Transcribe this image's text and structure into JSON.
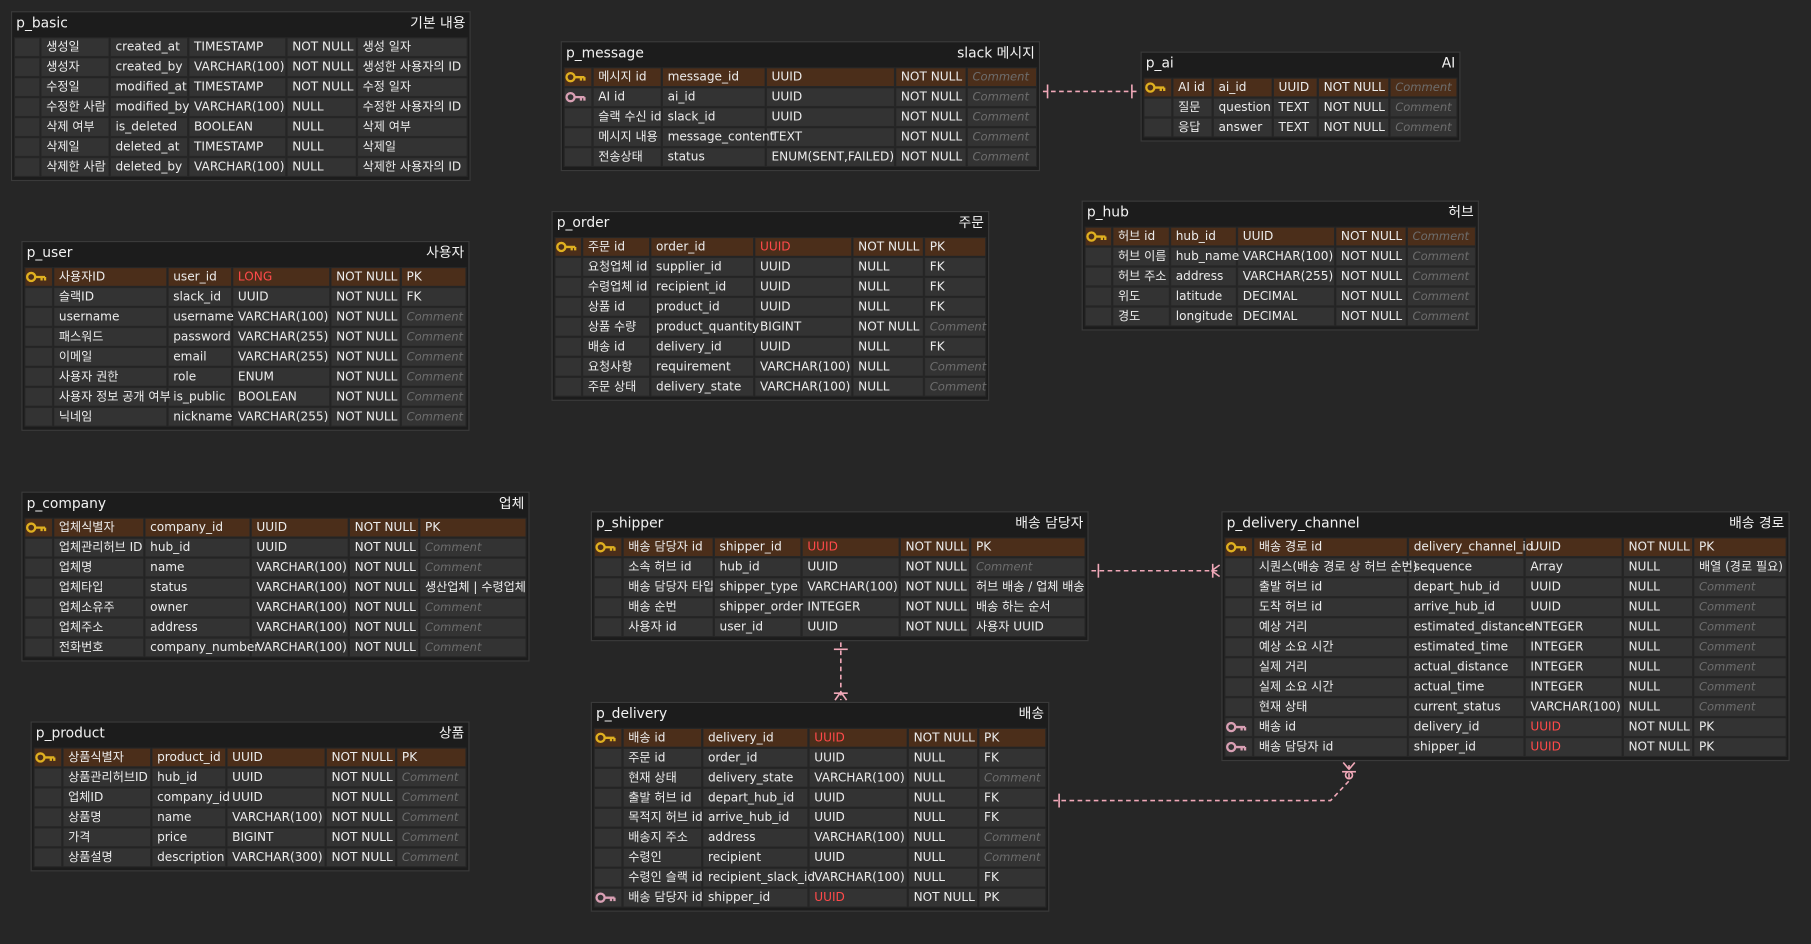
{
  "tables": [
    {
      "name": "p_basic",
      "label": "기본 내용",
      "rows": [
        [
          "생성일",
          "created_at",
          "TIMESTAMP",
          "NOT NULL",
          "생성 일자"
        ],
        [
          "생성자",
          "created_by",
          "VARCHAR(100)",
          "NOT NULL",
          "생성한 사용자의 ID"
        ],
        [
          "수정일",
          "modified_at",
          "TIMESTAMP",
          "NOT NULL",
          "수정 일자"
        ],
        [
          "수정한 사람",
          "modified_by",
          "VARCHAR(100)",
          "NULL",
          "수정한 사용자의 ID"
        ],
        [
          "삭제 여부",
          "is_deleted",
          "BOOLEAN",
          "NULL",
          "삭제 여부"
        ],
        [
          "삭제일",
          "deleted_at",
          "TIMESTAMP",
          "NULL",
          "삭제일"
        ],
        [
          "삭제한 사람",
          "deleted_by",
          "VARCHAR(100)",
          "NULL",
          "삭제한 사용자의 ID"
        ]
      ]
    },
    {
      "name": "p_message",
      "label": "slack 메시지",
      "rows": [
        [
          "메시지 id",
          "message_id",
          "UUID",
          "NOT NULL",
          "Comment"
        ],
        [
          "AI id",
          "ai_id",
          "UUID",
          "NOT NULL",
          "Comment"
        ],
        [
          "슬랙 수신 id",
          "slack_id",
          "UUID",
          "NOT NULL",
          "Comment"
        ],
        [
          "메시지 내용",
          "message_content",
          "TEXT",
          "NOT NULL",
          "Comment"
        ],
        [
          "전송상태",
          "status",
          "ENUM(SENT,FAILED)",
          "NOT NULL",
          "Comment"
        ]
      ]
    },
    {
      "name": "p_ai",
      "label": "AI",
      "rows": [
        [
          "AI id",
          "ai_id",
          "UUID",
          "NOT NULL",
          "Comment"
        ],
        [
          "질문",
          "question",
          "TEXT",
          "NOT NULL",
          "Comment"
        ],
        [
          "응답",
          "answer",
          "TEXT",
          "NOT NULL",
          "Comment"
        ]
      ]
    },
    {
      "name": "p_user",
      "label": "사용자",
      "rows": [
        [
          "사용자ID",
          "user_id",
          "LONG",
          "NOT NULL",
          "PK"
        ],
        [
          "슬랙ID",
          "slack_id",
          "UUID",
          "NOT NULL",
          "FK"
        ],
        [
          "username",
          "username",
          "VARCHAR(100)",
          "NOT NULL",
          "Comment"
        ],
        [
          "패스워드",
          "password",
          "VARCHAR(255)",
          "NOT NULL",
          "Comment"
        ],
        [
          "이메일",
          "email",
          "VARCHAR(255)",
          "NOT NULL",
          "Comment"
        ],
        [
          "사용자 권한",
          "role",
          "ENUM",
          "NOT NULL",
          "Comment"
        ],
        [
          "사용자 정보 공개 여부",
          "is_public",
          "BOOLEAN",
          "NOT NULL",
          "Comment"
        ],
        [
          "닉네임",
          "nickname",
          "VARCHAR(255)",
          "NOT NULL",
          "Comment"
        ]
      ]
    },
    {
      "name": "p_order",
      "label": "주문",
      "rows": [
        [
          "주문 id",
          "order_id",
          "UUID",
          "NOT NULL",
          "PK"
        ],
        [
          "요청업체 id",
          "supplier_id",
          "UUID",
          "NULL",
          "FK"
        ],
        [
          "수령업체 id",
          "recipient_id",
          "UUID",
          "NULL",
          "FK"
        ],
        [
          "상품 id",
          "product_id",
          "UUID",
          "NULL",
          "FK"
        ],
        [
          "상품 수량",
          "product_quantity",
          "BIGINT",
          "NOT NULL",
          "Comment"
        ],
        [
          "배송 id",
          "delivery_id",
          "UUID",
          "NULL",
          "FK"
        ],
        [
          "요청사항",
          "requirement",
          "VARCHAR(100)",
          "NULL",
          "Comment"
        ],
        [
          "주문 상태",
          "delivery_state",
          "VARCHAR(100)",
          "NULL",
          "Comment"
        ]
      ]
    },
    {
      "name": "p_hub",
      "label": "허브",
      "rows": [
        [
          "허브 id",
          "hub_id",
          "UUID",
          "NOT NULL",
          "Comment"
        ],
        [
          "허브 이름",
          "hub_name",
          "VARCHAR(100)",
          "NOT NULL",
          "Comment"
        ],
        [
          "허브 주소",
          "address",
          "VARCHAR(255)",
          "NOT NULL",
          "Comment"
        ],
        [
          "위도",
          "latitude",
          "DECIMAL",
          "NOT NULL",
          "Comment"
        ],
        [
          "경도",
          "longitude",
          "DECIMAL",
          "NOT NULL",
          "Comment"
        ]
      ]
    },
    {
      "name": "p_company",
      "label": "업체",
      "rows": [
        [
          "업체식별자",
          "company_id",
          "UUID",
          "NOT NULL",
          "PK"
        ],
        [
          "업체관리허브 ID",
          "hub_id",
          "UUID",
          "NOT NULL",
          "Comment"
        ],
        [
          "업체명",
          "name",
          "VARCHAR(100)",
          "NOT NULL",
          "Comment"
        ],
        [
          "업체타입",
          "status",
          "VARCHAR(100)",
          "NOT NULL",
          "생산업체 | 수령업체"
        ],
        [
          "업체소유주",
          "owner",
          "VARCHAR(100)",
          "NOT NULL",
          "Comment"
        ],
        [
          "업체주소",
          "address",
          "VARCHAR(100)",
          "NOT NULL",
          "Comment"
        ],
        [
          "전화번호",
          "company_number",
          "VARCHAR(100)",
          "NOT NULL",
          "Comment"
        ]
      ]
    },
    {
      "name": "p_shipper",
      "label": "배송 담당자",
      "rows": [
        [
          "배송 담당자 id",
          "shipper_id",
          "UUID",
          "NOT NULL",
          "PK"
        ],
        [
          "소속 허브 id",
          "hub_id",
          "UUID",
          "NOT NULL",
          "Comment"
        ],
        [
          "배송 담당자 타입",
          "shipper_type",
          "VARCHAR(100)",
          "NOT NULL",
          "허브 배송 / 업체 배송"
        ],
        [
          "배송 순번",
          "shipper_order",
          "INTEGER",
          "NOT NULL",
          "배송 하는 순서"
        ],
        [
          "사용자 id",
          "user_id",
          "UUID",
          "NOT NULL",
          "사용자 UUID"
        ]
      ]
    },
    {
      "name": "p_delivery_channel",
      "label": "배송 경로",
      "rows": [
        [
          "배송 경로 id",
          "delivery_channel_id",
          "UUID",
          "NOT NULL",
          "PK"
        ],
        [
          "시퀀스(배송 경로 상 허브 순번)",
          "sequence",
          "Array",
          "NULL",
          "배열 (경로 필요)"
        ],
        [
          "출발 허브 id",
          "depart_hub_id",
          "UUID",
          "NULL",
          "Comment"
        ],
        [
          "도착 허브 id",
          "arrive_hub_id",
          "UUID",
          "NULL",
          "Comment"
        ],
        [
          "예상 거리",
          "estimated_distance",
          "INTEGER",
          "NULL",
          "Comment"
        ],
        [
          "예상 소요 시간",
          "estimated_time",
          "INTEGER",
          "NULL",
          "Comment"
        ],
        [
          "실제 거리",
          "actual_distance",
          "INTEGER",
          "NULL",
          "Comment"
        ],
        [
          "실제 소요 시간",
          "actual_time",
          "INTEGER",
          "NULL",
          "Comment"
        ],
        [
          "현재 상태",
          "current_status",
          "VARCHAR(100)",
          "NULL",
          "Comment"
        ],
        [
          "배송 id",
          "delivery_id",
          "UUID",
          "NOT NULL",
          "PK"
        ],
        [
          "배송 담당자 id",
          "shipper_id",
          "UUID",
          "NOT NULL",
          "PK"
        ]
      ]
    },
    {
      "name": "p_product",
      "label": "상품",
      "rows": [
        [
          "상품식별자",
          "product_id",
          "UUID",
          "NOT NULL",
          "PK"
        ],
        [
          "상품관리허브ID",
          "hub_id",
          "UUID",
          "NOT NULL",
          "Comment"
        ],
        [
          "업체ID",
          "company_id",
          "UUID",
          "NOT NULL",
          "Comment"
        ],
        [
          "상품명",
          "name",
          "VARCHAR(100)",
          "NOT NULL",
          "Comment"
        ],
        [
          "가격",
          "price",
          "BIGINT",
          "NOT NULL",
          "Comment"
        ],
        [
          "상품설명",
          "description",
          "VARCHAR(300)",
          "NOT NULL",
          "Comment"
        ]
      ]
    },
    {
      "name": "p_delivery",
      "label": "배송",
      "rows": [
        [
          "배송 id",
          "delivery_id",
          "UUID",
          "NOT NULL",
          "PK"
        ],
        [
          "주문 id",
          "order_id",
          "UUID",
          "NULL",
          "FK"
        ],
        [
          "현재 상태",
          "delivery_state",
          "VARCHAR(100)",
          "NULL",
          "Comment"
        ],
        [
          "출발 허브 id",
          "depart_hub_id",
          "UUID",
          "NULL",
          "FK"
        ],
        [
          "목적지 허브 id",
          "arrive_hub_id",
          "UUID",
          "NULL",
          "FK"
        ],
        [
          "배송지 주소",
          "address",
          "VARCHAR(100)",
          "NULL",
          "Comment"
        ],
        [
          "수령인",
          "recipient",
          "UUID",
          "NULL",
          "Comment"
        ],
        [
          "수령인 슬랙 id",
          "recipient_slack_id",
          "VARCHAR(100)",
          "NULL",
          "FK"
        ],
        [
          "배송 담당자 id",
          "shipper_id",
          "UUID",
          "NOT NULL",
          "PK"
        ]
      ]
    }
  ]
}
